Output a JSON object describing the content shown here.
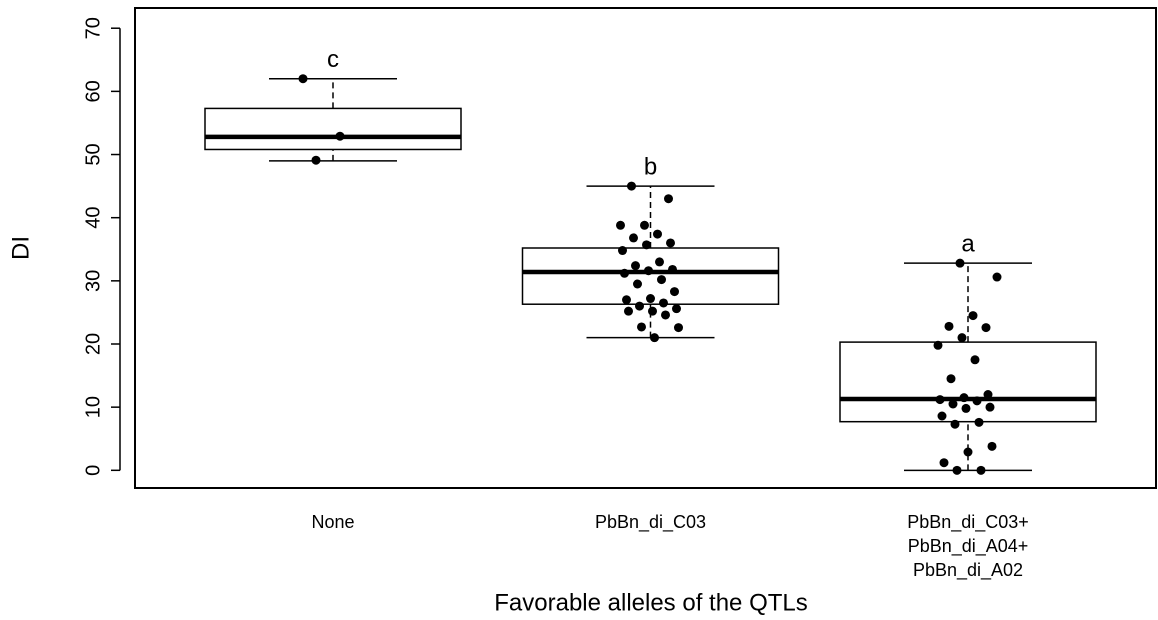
{
  "chart_data": {
    "type": "box",
    "y_label": "DI",
    "x_label": "Favorable alleles of the QTLs",
    "categories": [
      "None",
      "PbBn_di_C03",
      "PbBn_di_C03+\nPbBn_di_A04+\nPbBn_di_A02"
    ],
    "ylim": [
      -2.8,
      73.2
    ],
    "yticks": [
      0,
      10,
      20,
      30,
      40,
      50,
      60,
      70
    ],
    "color": "#000000",
    "boxes": [
      {
        "whisker_low": 49,
        "q1": 50.8,
        "median": 52.8,
        "q3": 57.3,
        "whisker_high": 62,
        "letter": "c",
        "points": [
          62,
          52.9,
          49.1
        ]
      },
      {
        "whisker_low": 21,
        "q1": 26.3,
        "median": 31.4,
        "q3": 35.2,
        "whisker_high": 45,
        "letter": "b",
        "points": [
          45,
          43,
          38.8,
          38.8,
          37.4,
          36.8,
          36,
          35.7,
          34.8,
          33,
          32.4,
          31.8,
          31.6,
          31.2,
          30.2,
          29.5,
          28.3,
          27.2,
          27,
          26.5,
          26,
          25.6,
          25.2,
          25.2,
          24.6,
          22.7,
          22.6,
          21
        ]
      },
      {
        "whisker_low": 0,
        "q1": 7.7,
        "median": 11.3,
        "q3": 20.3,
        "whisker_high": 32.8,
        "letter": "a",
        "points": [
          32.8,
          30.6,
          24.5,
          22.8,
          22.6,
          21,
          19.8,
          17.5,
          14.5,
          12,
          11.5,
          11.2,
          11,
          10.5,
          10,
          9.8,
          8.6,
          7.6,
          7.3,
          3.8,
          2.9,
          1.2,
          0,
          0
        ]
      }
    ]
  }
}
